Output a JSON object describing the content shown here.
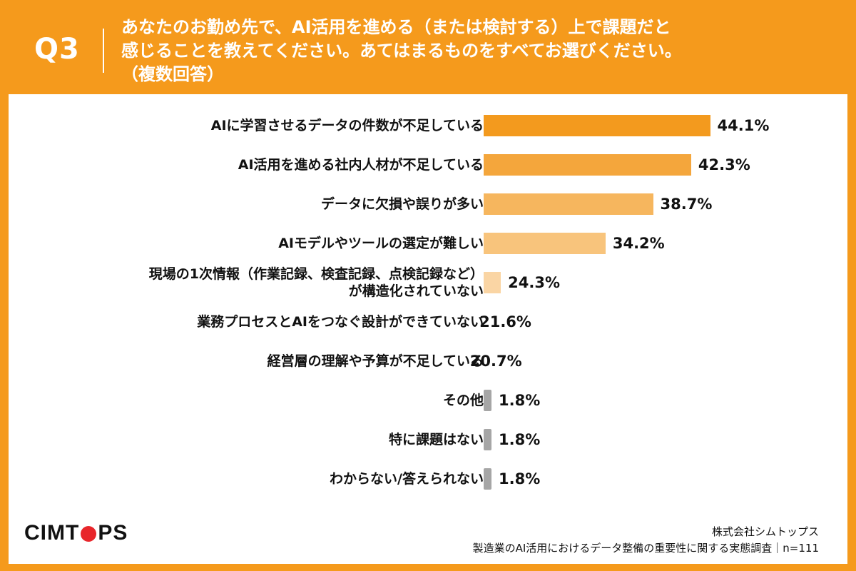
{
  "header": {
    "q_label": "Q3",
    "question": "あなたのお勤め先で、AI活用を進める（または検討する）上で課題だと\n感じることを教えてください。あてはまるものをすべてお選びください。\n（複数回答）"
  },
  "footer": {
    "logo_prefix": "CIMT",
    "logo_suffix": "PS",
    "company": "株式会社シムトップス",
    "survey": "製造業のAI活用におけるデータ整備の重要性に関する実態調査｜n=111"
  },
  "chart_data": {
    "type": "bar",
    "orientation": "horizontal",
    "categories": [
      "AIに学習させるデータの件数が不足している",
      "AI活用を進める社内人材が不足している",
      "データに欠損や誤りが多い",
      "AIモデルやツールの選定が難しい",
      "現場の1次情報（作業記録、検査記録、点検記録など）\nが構造化されていない",
      "業務プロセスとAIをつなぐ設計ができていない",
      "経営層の理解や予算が不足している",
      "その他",
      "特に課題はない",
      "わからない/答えられない"
    ],
    "values": [
      44.1,
      42.3,
      38.7,
      34.2,
      24.3,
      21.6,
      20.7,
      1.8,
      1.8,
      1.8
    ],
    "value_labels": [
      "44.1%",
      "42.3%",
      "38.7%",
      "34.2%",
      "24.3%",
      "21.6%",
      "20.7%",
      "1.8%",
      "1.8%",
      "1.8%"
    ],
    "colors": [
      "#f39a1e",
      "#f4a63c",
      "#f6b65e",
      "#f8c47c",
      "#fad5a4",
      "#fbe1c0",
      "#fdeedd",
      "#a6a6a6",
      "#a6a6a6",
      "#a6a6a6"
    ],
    "xlim": [
      0,
      50
    ],
    "grid": false,
    "legend": "none"
  }
}
